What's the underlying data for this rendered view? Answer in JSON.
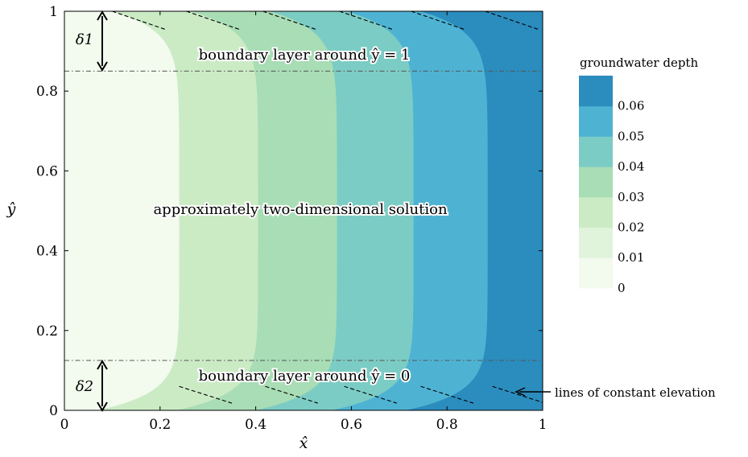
{
  "chart_data": {
    "type": "heatmap",
    "xlabel": "x̂",
    "ylabel": "ŷ",
    "xlim": [
      0,
      1
    ],
    "ylim": [
      0,
      1
    ],
    "x_ticks": [
      "0",
      "0.2",
      "0.4",
      "0.6",
      "0.8",
      "1"
    ],
    "y_ticks": [
      "0",
      "0.2",
      "0.4",
      "0.6",
      "0.8",
      "1"
    ],
    "grid": false,
    "colorbar": {
      "title": "groundwater depth",
      "levels": [
        0,
        0.01,
        0.02,
        0.03,
        0.04,
        0.05,
        0.06
      ],
      "tick_labels": [
        "0",
        "0.01",
        "0.02",
        "0.03",
        "0.04",
        "0.05",
        "0.06"
      ],
      "colors": [
        "#f3faee",
        "#e0f3db",
        "#cbebc5",
        "#a8ddb5",
        "#7bccc4",
        "#4eb3d3",
        "#2b8cbe"
      ]
    },
    "contour_boundaries_x_interior": [
      0.24,
      0.405,
      0.57,
      0.73,
      0.885
    ],
    "boundary_layers": {
      "top_line_y": 0.85,
      "bottom_line_y": 0.125,
      "delta_top_label": "δ1",
      "delta_bottom_label": "δ2"
    },
    "annotations": {
      "top_layer": "boundary layer around ŷ = 1",
      "middle": "approximately two-dimensional solution",
      "bottom_layer": "boundary layer around ŷ = 0",
      "constant_elevation": "lines of constant elevation"
    }
  }
}
